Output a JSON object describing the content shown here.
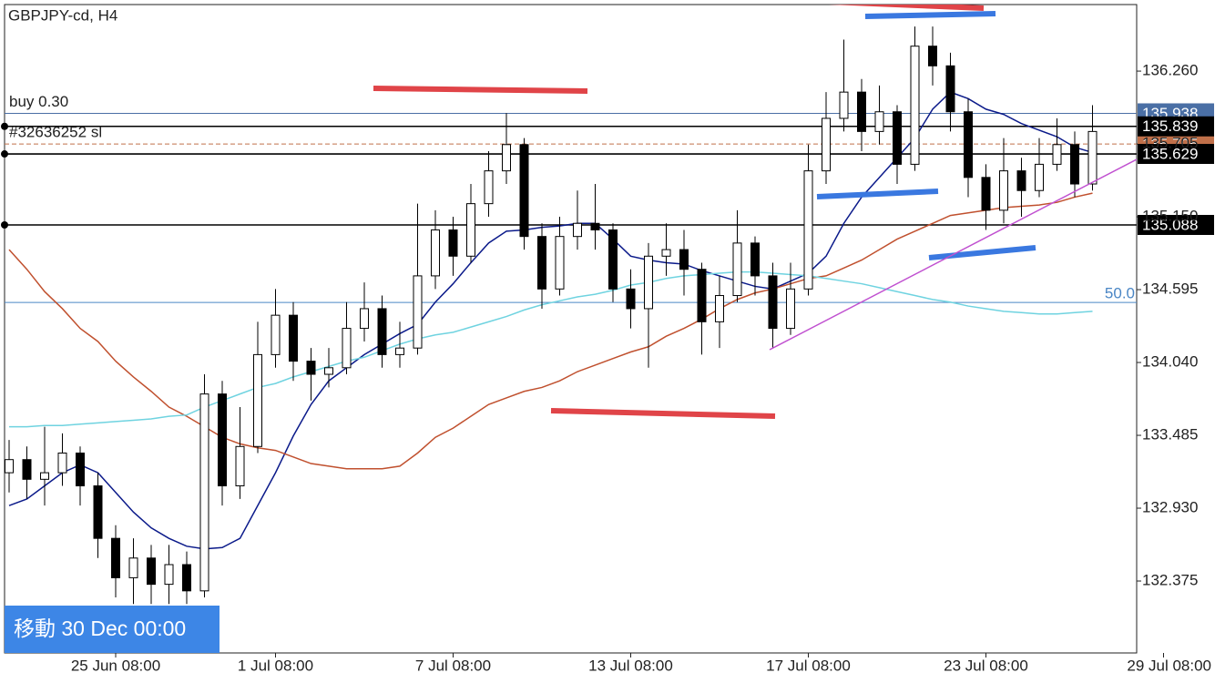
{
  "chart_data": {
    "type": "candlestick",
    "title": "GBPJPY-cd, H4",
    "categories": [
      null,
      null,
      null,
      null,
      null,
      null,
      "25 Jun 08:00",
      null,
      null,
      null,
      null,
      null,
      null,
      null,
      null,
      "1 Jul 08:00",
      null,
      null,
      null,
      null,
      null,
      null,
      null,
      null,
      null,
      "7 Jul 08:00",
      null,
      null,
      null,
      null,
      null,
      null,
      null,
      null,
      null,
      "13 Jul 08:00",
      null,
      null,
      null,
      null,
      null,
      null,
      null,
      null,
      null,
      "17 Jul 08:00",
      null,
      null,
      null,
      null,
      null,
      null,
      null,
      null,
      null,
      "23 Jul 08:00",
      null,
      null,
      null,
      null,
      null,
      null,
      null,
      null,
      null,
      "29 Jul 08:00"
    ],
    "open": [
      133.2,
      133.3,
      133.15,
      133.2,
      133.35,
      133.1,
      132.7,
      132.4,
      132.55,
      132.35,
      132.5,
      132.3,
      133.8,
      133.1,
      133.4,
      134.1,
      134.4,
      134.05,
      133.95,
      134.0,
      134.3,
      134.45,
      134.1,
      134.15,
      134.7,
      135.05,
      134.85,
      135.25,
      135.5,
      135.7,
      135.0,
      134.6,
      135.0,
      135.1,
      135.05,
      134.6,
      134.45,
      134.85,
      134.9,
      134.75,
      134.35,
      134.55,
      134.95,
      134.7,
      134.3,
      134.6,
      135.5,
      135.9,
      136.1,
      135.8,
      135.95,
      135.55,
      136.45,
      136.3,
      135.95,
      135.45,
      135.2,
      135.5,
      135.35,
      135.55,
      135.7,
      135.4,
      null,
      null,
      null,
      null
    ],
    "high": [
      133.45,
      133.4,
      133.55,
      133.5,
      133.4,
      133.2,
      132.8,
      132.7,
      132.65,
      132.65,
      132.6,
      133.95,
      133.9,
      133.7,
      134.35,
      134.6,
      134.5,
      134.15,
      134.15,
      134.5,
      134.65,
      134.55,
      134.35,
      135.25,
      135.2,
      135.15,
      135.4,
      135.65,
      135.94,
      135.75,
      135.1,
      135.15,
      135.35,
      135.4,
      135.1,
      134.75,
      134.95,
      135.1,
      135.05,
      134.8,
      134.7,
      135.2,
      135.0,
      134.8,
      134.8,
      135.7,
      136.1,
      136.5,
      136.2,
      136.15,
      136.0,
      136.6,
      136.6,
      136.4,
      136.05,
      135.55,
      135.75,
      135.6,
      135.75,
      135.9,
      135.8,
      136.0,
      null,
      null,
      null,
      null
    ],
    "low": [
      133.05,
      133.0,
      132.95,
      133.1,
      132.95,
      132.55,
      132.25,
      132.2,
      132.2,
      132.2,
      132.2,
      132.25,
      132.95,
      133.0,
      133.35,
      134.0,
      133.9,
      133.75,
      133.85,
      133.95,
      134.2,
      134.0,
      134.0,
      134.1,
      134.6,
      134.7,
      134.8,
      135.15,
      135.4,
      134.9,
      134.45,
      134.55,
      134.9,
      134.9,
      134.5,
      134.3,
      134.0,
      134.7,
      134.55,
      134.1,
      134.15,
      134.5,
      134.55,
      134.15,
      134.25,
      134.55,
      135.4,
      135.8,
      135.65,
      135.7,
      135.4,
      135.5,
      136.15,
      135.8,
      135.3,
      135.05,
      135.1,
      135.15,
      135.3,
      135.5,
      135.3,
      135.35,
      null,
      null,
      null,
      null
    ],
    "close": [
      133.3,
      133.15,
      133.2,
      133.35,
      133.1,
      132.7,
      132.4,
      132.55,
      132.35,
      132.5,
      132.3,
      133.8,
      133.1,
      133.4,
      134.1,
      134.4,
      134.05,
      133.95,
      134.0,
      134.3,
      134.45,
      134.1,
      134.15,
      134.7,
      135.05,
      134.85,
      135.25,
      135.5,
      135.7,
      135.0,
      134.6,
      135.0,
      135.1,
      135.05,
      134.6,
      134.45,
      134.85,
      134.9,
      134.75,
      134.35,
      134.55,
      134.95,
      134.7,
      134.3,
      134.6,
      135.5,
      135.9,
      136.1,
      135.8,
      135.95,
      135.55,
      136.45,
      136.3,
      135.95,
      135.45,
      135.2,
      135.5,
      135.35,
      135.55,
      135.7,
      135.4,
      135.8,
      null,
      null,
      null,
      null
    ],
    "ma_lines": [
      {
        "color": "#0b1a8a",
        "values": [
          132.95,
          133.0,
          133.1,
          133.2,
          133.26,
          133.2,
          133.05,
          132.9,
          132.78,
          132.7,
          132.64,
          132.62,
          132.63,
          132.7,
          132.95,
          133.2,
          133.48,
          133.72,
          133.9,
          134.0,
          134.1,
          134.18,
          134.26,
          134.33,
          134.5,
          134.64,
          134.8,
          134.95,
          135.04,
          135.05,
          135.07,
          135.08,
          135.1,
          135.1,
          134.98,
          134.85,
          134.82,
          134.8,
          134.79,
          134.74,
          134.7,
          134.66,
          134.62,
          134.6,
          134.66,
          134.72,
          134.85,
          135.1,
          135.3,
          135.45,
          135.6,
          135.75,
          135.97,
          136.1,
          136.05,
          135.97,
          135.93,
          135.86,
          135.81,
          135.76,
          135.68,
          135.64,
          null,
          null,
          null,
          null
        ]
      },
      {
        "color": "#c0502e",
        "values": [
          134.9,
          134.75,
          134.58,
          134.45,
          134.3,
          134.2,
          134.05,
          133.93,
          133.82,
          133.7,
          133.63,
          133.55,
          133.47,
          133.42,
          133.39,
          133.37,
          133.32,
          133.27,
          133.25,
          133.23,
          133.23,
          133.23,
          133.25,
          133.35,
          133.47,
          133.54,
          133.63,
          133.72,
          133.77,
          133.82,
          133.85,
          133.9,
          133.97,
          134.02,
          134.07,
          134.12,
          134.16,
          134.24,
          134.3,
          134.37,
          134.45,
          134.52,
          134.57,
          134.6,
          134.64,
          134.68,
          134.7,
          134.76,
          134.82,
          134.9,
          134.98,
          135.04,
          135.1,
          135.16,
          135.18,
          135.2,
          135.22,
          135.23,
          135.24,
          135.26,
          135.3,
          135.33,
          null,
          null,
          null,
          null
        ]
      },
      {
        "color": "#6fd3e0",
        "values": [
          133.55,
          133.55,
          133.56,
          133.56,
          133.57,
          133.58,
          133.59,
          133.6,
          133.61,
          133.63,
          133.64,
          133.7,
          133.75,
          133.8,
          133.85,
          133.88,
          133.93,
          133.97,
          134.01,
          134.05,
          134.08,
          134.13,
          134.18,
          134.22,
          134.25,
          134.27,
          134.31,
          134.35,
          134.39,
          134.44,
          134.48,
          134.51,
          134.54,
          134.56,
          134.59,
          134.63,
          134.65,
          134.68,
          134.7,
          134.71,
          134.72,
          134.73,
          134.73,
          134.72,
          134.71,
          134.7,
          134.68,
          134.66,
          134.64,
          134.61,
          134.58,
          134.55,
          134.52,
          134.5,
          134.47,
          134.45,
          134.43,
          134.42,
          134.41,
          134.41,
          134.42,
          134.43,
          null,
          null,
          null,
          null
        ]
      }
    ],
    "ylim": [
      131.827,
      136.767
    ],
    "yticks": [
      {
        "value": 136.26,
        "label": "136.260"
      },
      135.705,
      {
        "value": 135.15,
        "label": "135.150"
      },
      134.595,
      {
        "value": 134.04,
        "label": "134.040"
      },
      133.485,
      {
        "value": 132.93,
        "label": "132.930"
      },
      132.375
    ],
    "price_lines": [
      {
        "value": 134.497,
        "label": "50.0",
        "color": "#4a86c5",
        "style": "solid"
      },
      {
        "value": 135.705,
        "label": "#32636252 sl",
        "color": "#c0704a",
        "style": "dashed"
      },
      {
        "value": 135.938,
        "label": "buy 0.30",
        "color": "#4a6fa5",
        "style": "solid"
      },
      {
        "value": 135.088,
        "color": "#000000",
        "style": "solid"
      },
      {
        "value": 135.629,
        "color": "#000000",
        "style": "solid"
      },
      {
        "value": 135.839,
        "color": "#000000",
        "style": "solid"
      }
    ],
    "up_color": "#ffffff",
    "down_color": "#000000"
  },
  "ui": {
    "jump_button": "移動 30 Dec 00:00"
  }
}
